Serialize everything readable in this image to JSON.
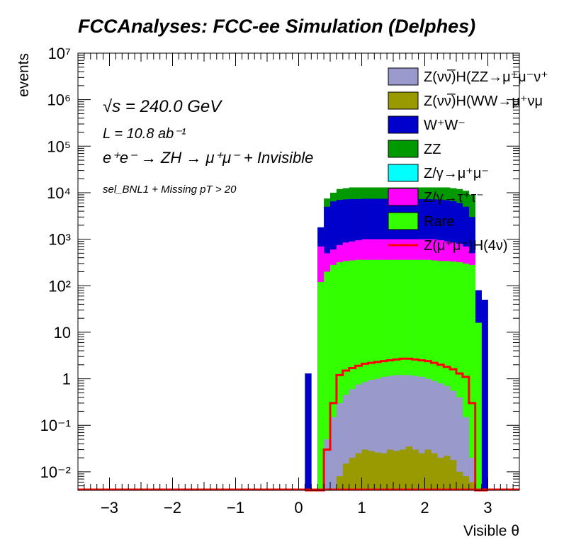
{
  "chart_data": {
    "type": "histogram",
    "title": "FCCAnalyses: FCC-ee Simulation (Delphes)",
    "xlabel": "Visible θ",
    "ylabel": "events",
    "xlim": [
      -3.5,
      3.5
    ],
    "ylim": [
      0.004,
      10000000
    ],
    "yscale": "log",
    "grid": false,
    "legend_position": "top-right",
    "x_ticks": [
      "−3",
      "−2",
      "−1",
      "0",
      "1",
      "2",
      "3"
    ],
    "y_ticks": [
      "10⁻²",
      "10⁻¹",
      "1",
      "10",
      "10²",
      "10³",
      "10⁴",
      "10⁵",
      "10⁶",
      "10⁷"
    ],
    "annotations": {
      "sqrt_s": "√s = 240.0 GeV",
      "lumi": "L = 10.8 ab⁻¹",
      "process": "e⁺e⁻ → ZH → μ⁺μ⁻ + Invisible",
      "selection": "sel_BNL1 + Missing pT > 20"
    },
    "bin_edges_range": [
      0.1,
      3.0
    ],
    "bin_width": 0.1,
    "series": [
      {
        "name": "Z(νν̅)H(ZZ→μ⁺μ⁻ν⁺",
        "color": "#9999cc",
        "stack_top": [
          0,
          0,
          0.004,
          0.05,
          0.15,
          0.3,
          0.45,
          0.6,
          0.75,
          0.85,
          0.95,
          1.0,
          1.1,
          1.15,
          1.2,
          1.2,
          1.2,
          1.15,
          1.1,
          1.0,
          0.9,
          0.8,
          0.7,
          0.55,
          0.4,
          0.15,
          0.02,
          0.004,
          0.004
        ]
      },
      {
        "name": "Z(νν̅)H(WW→μ⁺νμ",
        "color": "#999900",
        "stack_top": [
          0,
          0,
          0.004,
          0.004,
          0.004,
          0.008,
          0.015,
          0.02,
          0.025,
          0.03,
          0.028,
          0.026,
          0.025,
          0.03,
          0.028,
          0.03,
          0.035,
          0.03,
          0.025,
          0.03,
          0.025,
          0.02,
          0.022,
          0.018,
          0.01,
          0.008,
          0.006,
          0.004,
          0.004
        ]
      },
      {
        "name": "W⁺W⁻",
        "color": "#0000cc",
        "stack_top": [
          1.3,
          0.004,
          1800,
          5000,
          6500,
          7000,
          7200,
          7300,
          7300,
          7400,
          7400,
          7400,
          7400,
          7400,
          7400,
          7400,
          7400,
          7400,
          7300,
          7300,
          7200,
          7100,
          6900,
          6600,
          6000,
          5000,
          3000,
          80,
          50
        ]
      },
      {
        "name": "ZZ",
        "color": "#009900",
        "stack_top": [
          1.3,
          0.004,
          1800,
          7500,
          10000,
          12000,
          12500,
          13000,
          13000,
          13000,
          13000,
          13000,
          13000,
          13000,
          13000,
          13000,
          13000,
          13000,
          13000,
          13000,
          13000,
          13000,
          13000,
          12500,
          12000,
          11000,
          9000,
          80,
          50
        ]
      },
      {
        "name": "Z/γ→μ⁺μ⁻",
        "color": "#00ffff",
        "stack_top": [
          0,
          0,
          0,
          0,
          0,
          0,
          0,
          0,
          0,
          0,
          0,
          0,
          0,
          0,
          0,
          0,
          0,
          0,
          0,
          0,
          0,
          0,
          0,
          0,
          0,
          0,
          0,
          0,
          0
        ]
      },
      {
        "name": "Z/γ→τ⁺τ⁻",
        "color": "#ff00ff",
        "stack_top": [
          0,
          0,
          700,
          500,
          600,
          750,
          850,
          900,
          950,
          1000,
          1000,
          1000,
          1000,
          1000,
          1000,
          1000,
          1000,
          1000,
          1000,
          1000,
          1000,
          950,
          900,
          850,
          800,
          700,
          500,
          0,
          0
        ]
      },
      {
        "name": "Rare",
        "color": "#33ff00",
        "stack_top": [
          0,
          0,
          120,
          200,
          280,
          320,
          340,
          350,
          360,
          360,
          360,
          360,
          360,
          360,
          360,
          360,
          360,
          360,
          360,
          360,
          350,
          340,
          340,
          330,
          320,
          300,
          280,
          16,
          0
        ]
      },
      {
        "name": "Z(μ⁺μ⁻)H(4ν)",
        "color": "#ff0000",
        "line": true,
        "values": [
          0.004,
          0.004,
          0.004,
          0.03,
          0.3,
          1.2,
          1.5,
          1.7,
          1.9,
          2.1,
          2.2,
          2.3,
          2.4,
          2.5,
          2.6,
          2.7,
          2.7,
          2.6,
          2.5,
          2.4,
          2.2,
          2.0,
          1.8,
          1.6,
          1.3,
          1.1,
          0.3,
          0.004,
          0.004
        ]
      }
    ]
  }
}
